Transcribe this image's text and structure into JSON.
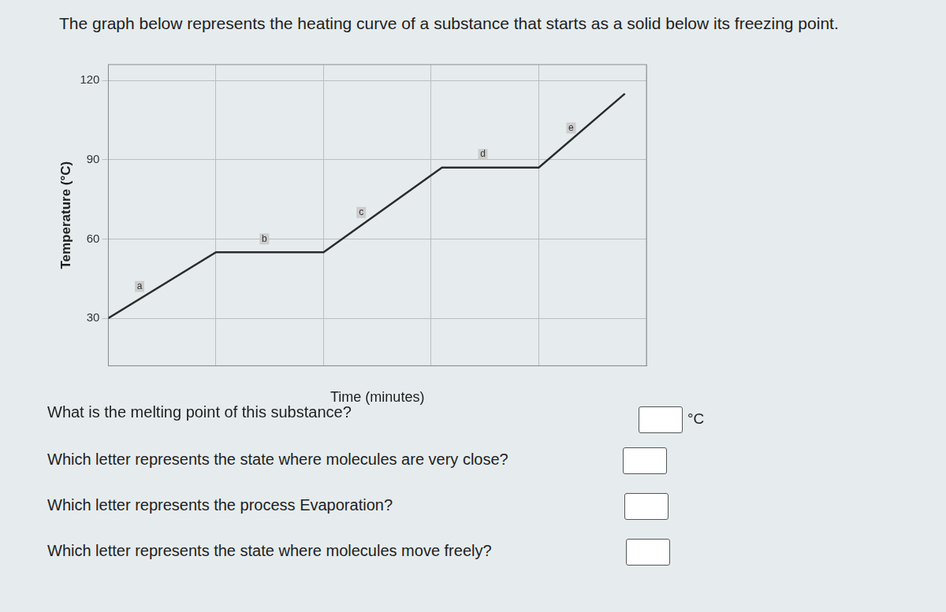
{
  "chart_data": {
    "type": "line",
    "title": "The graph below represents the heating curve of a substance that starts as a solid below its freezing point.",
    "x_label": "Time (minutes)",
    "y_label": "Temperature (°C)",
    "x": [
      0,
      10,
      20,
      31,
      40,
      48
    ],
    "series": [
      {
        "name": "Heating curve",
        "color": "#2b2b2b",
        "values": [
          30,
          55,
          55,
          87,
          87,
          115
        ]
      }
    ],
    "xlim": [
      0,
      50
    ],
    "xticks": [
      0,
      10,
      20,
      30,
      40,
      50
    ],
    "ylim": [
      12,
      126
    ],
    "yticks": [
      30,
      60,
      90,
      120
    ],
    "grid": true,
    "tick_labels": "y",
    "annotations": [
      {
        "text": "a",
        "x": 2.9,
        "y": 42
      },
      {
        "text": "b",
        "x": 14.5,
        "y": 60
      },
      {
        "text": "c",
        "x": 23.5,
        "y": 70
      },
      {
        "text": "d",
        "x": 34.8,
        "y": 92
      },
      {
        "text": "e",
        "x": 43,
        "y": 102
      }
    ]
  },
  "questions": [
    {
      "text": "What is the melting point of this substance?",
      "unit": "°C"
    },
    {
      "text": "Which letter represents the state where molecules are very close?"
    },
    {
      "text": "Which letter represents the process Evaporation?"
    },
    {
      "text": "Which letter represents the state where molecules move freely?"
    }
  ]
}
